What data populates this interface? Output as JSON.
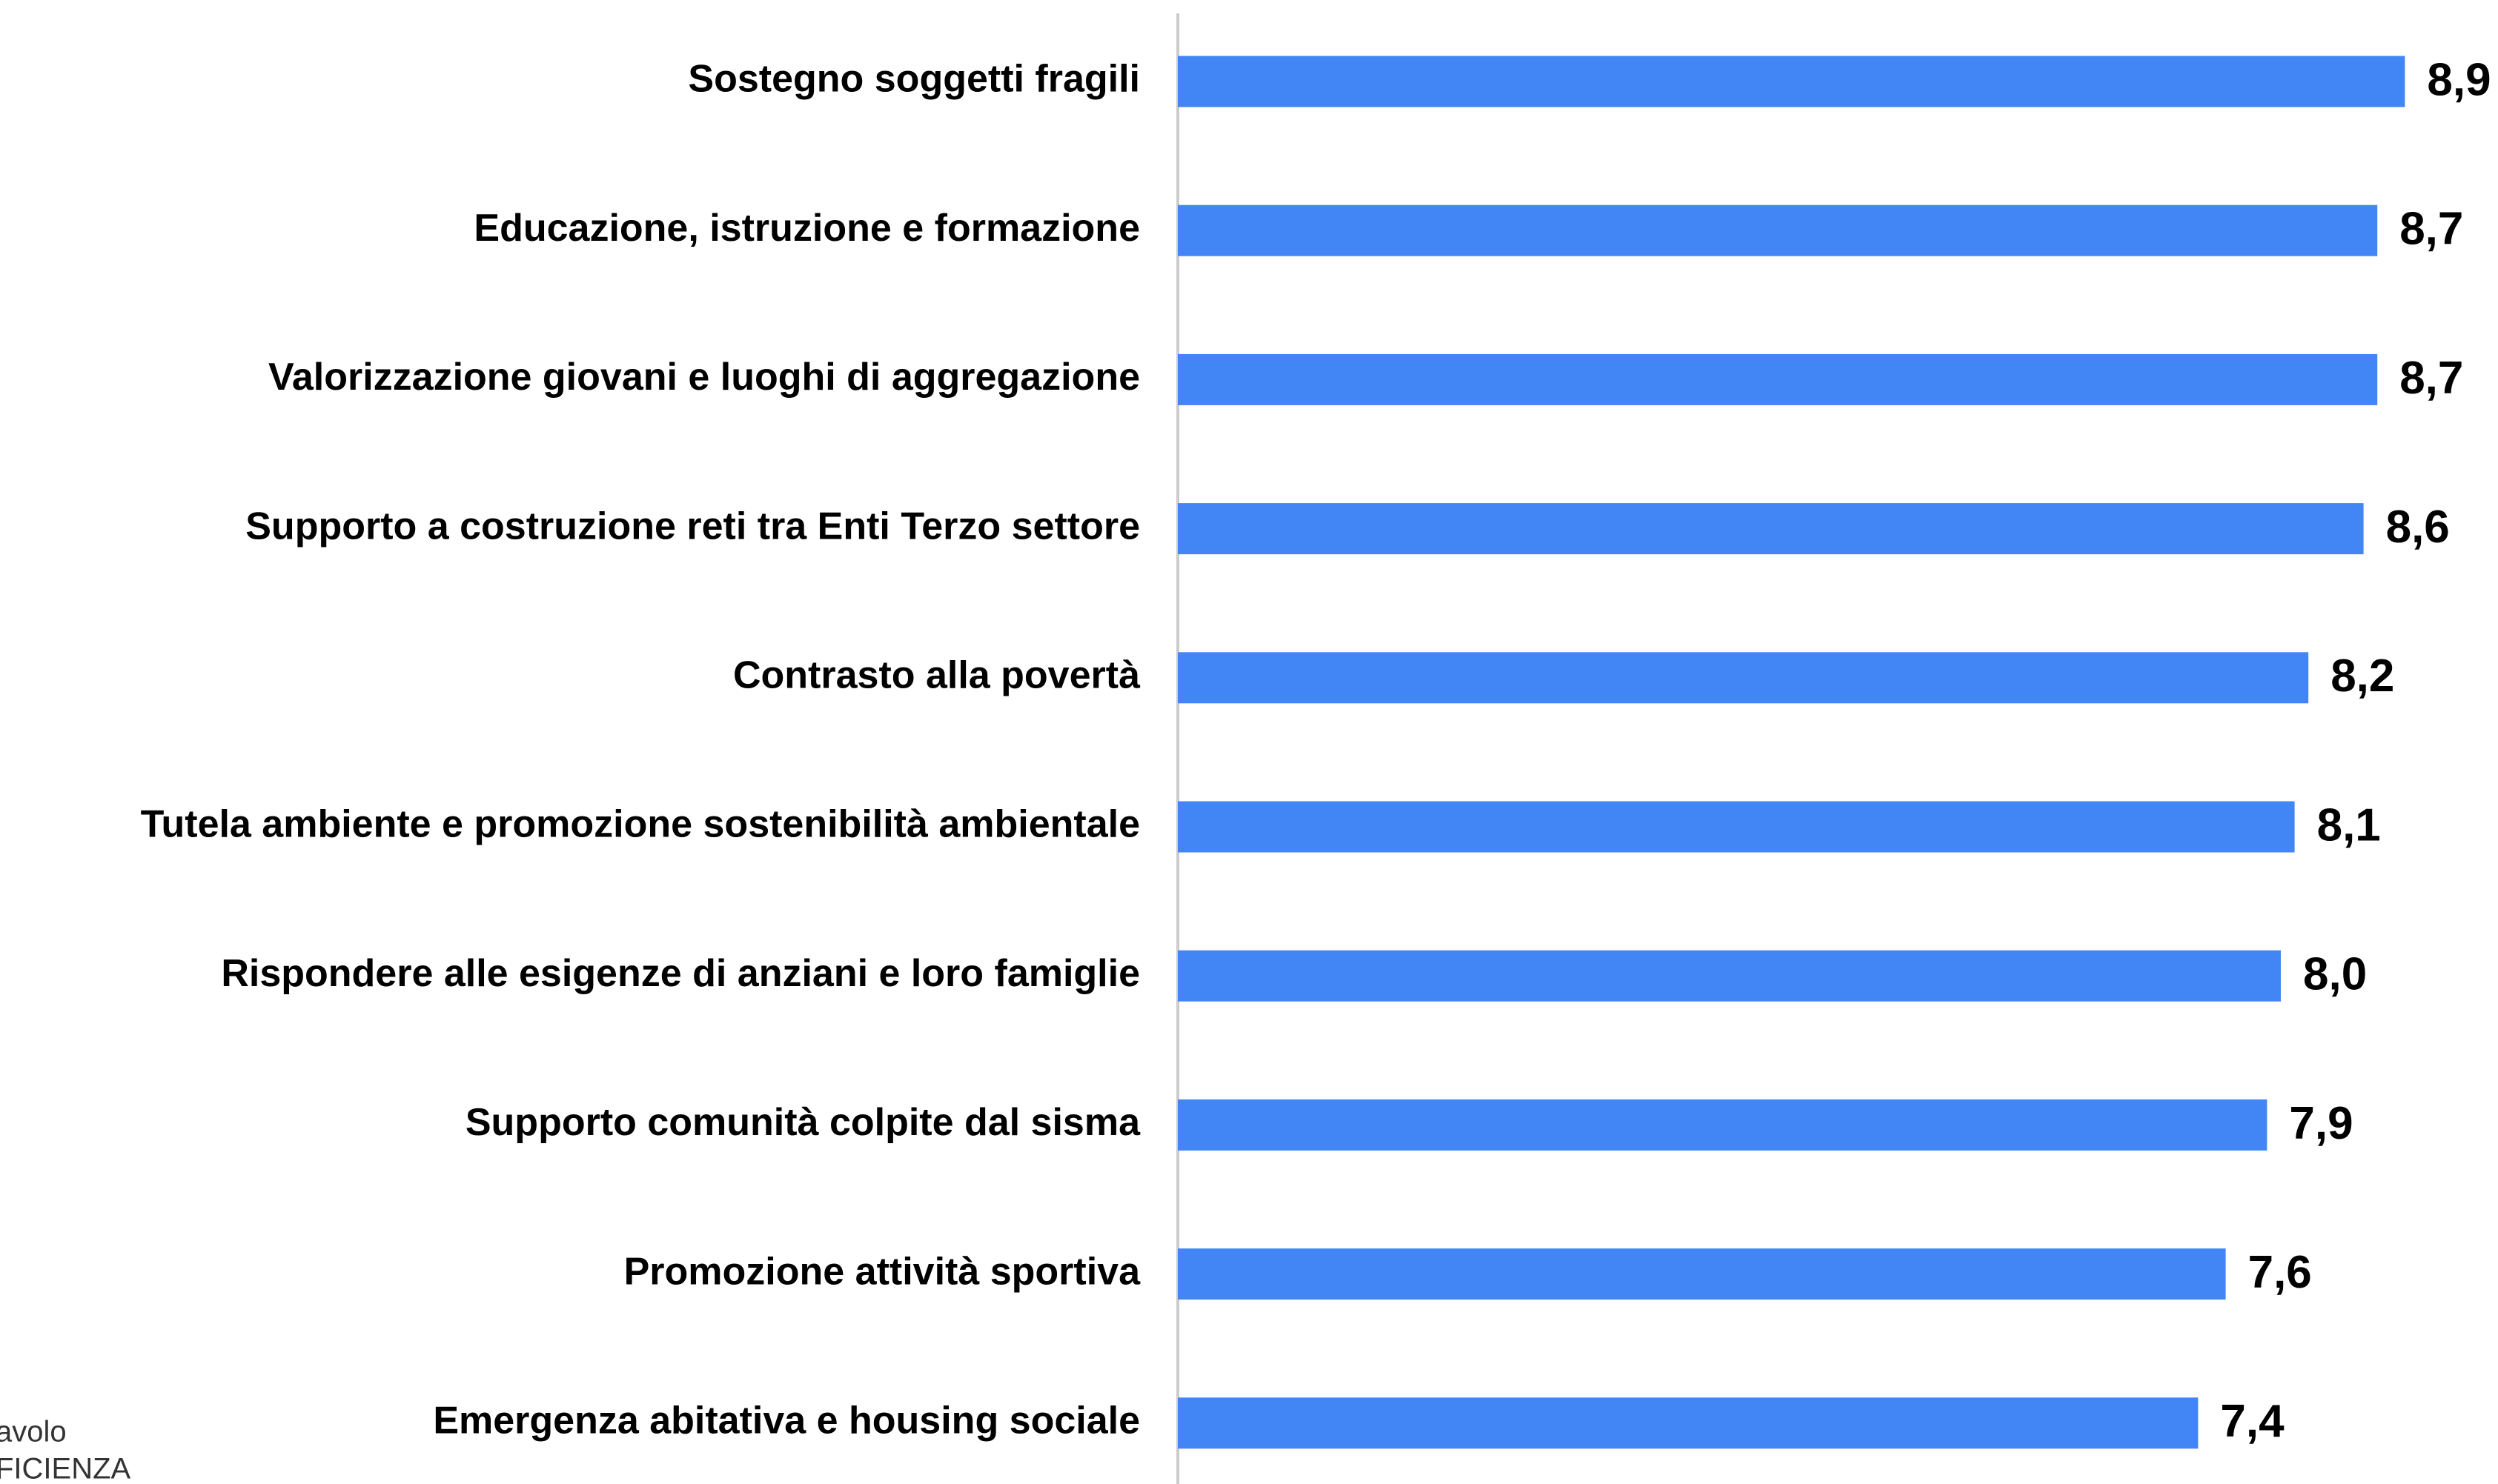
{
  "chart_data": {
    "type": "bar",
    "orientation": "horizontal",
    "categories": [
      "Sostegno soggetti fragili",
      "Educazione, istruzione e formazione",
      "Valorizzazione giovani e luoghi di aggregazione",
      "Supporto a costruzione reti tra Enti Terzo settore",
      "Contrasto alla povertà",
      "Tutela ambiente e promozione sostenibilità ambientale",
      "Rispondere alle esigenze di anziani e loro famiglie",
      "Supporto comunità colpite dal sisma",
      "Promozione attività sportiva",
      "Emergenza abitativa e housing sociale"
    ],
    "values": [
      8.9,
      8.7,
      8.7,
      8.6,
      8.2,
      8.1,
      8.0,
      7.9,
      7.6,
      7.4
    ],
    "value_labels": [
      "8,9",
      "8,7",
      "8,7",
      "8,6",
      "8,2",
      "8,1",
      "8,0",
      "7,9",
      "7,6",
      "7,4"
    ],
    "color": "#4285f4",
    "xlim": [
      0,
      9
    ]
  },
  "logo": [
    "avolo",
    "FICIENZA"
  ]
}
